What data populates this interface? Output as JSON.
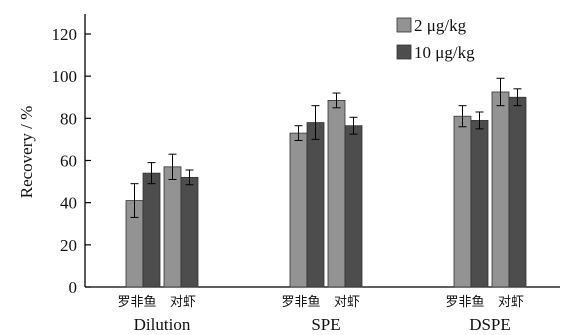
{
  "chart_data": {
    "type": "bar",
    "ylabel": "Recovery / %",
    "ylim": [
      0,
      120
    ],
    "yticks": [
      0,
      20,
      40,
      60,
      80,
      100,
      120
    ],
    "groups": [
      {
        "name": "Dilution",
        "subgroups": [
          {
            "label": "罗非鱼",
            "values": [
              41,
              54
            ],
            "errors": [
              8,
              5
            ]
          },
          {
            "label": "对虾",
            "values": [
              57,
              52
            ],
            "errors": [
              6,
              3.5
            ]
          }
        ]
      },
      {
        "name": "SPE",
        "subgroups": [
          {
            "label": "罗非鱼",
            "values": [
              73,
              78
            ],
            "errors": [
              3.5,
              8
            ]
          },
          {
            "label": "对虾",
            "values": [
              88.5,
              76.5
            ],
            "errors": [
              3.5,
              4
            ]
          }
        ]
      },
      {
        "name": "DSPE",
        "subgroups": [
          {
            "label": "罗非鱼",
            "values": [
              81,
              79
            ],
            "errors": [
              5,
              4
            ]
          },
          {
            "label": "对虾",
            "values": [
              92.5,
              90
            ],
            "errors": [
              6.5,
              4
            ]
          }
        ]
      }
    ],
    "series": [
      {
        "name": "2 μg/kg",
        "color": "#939393"
      },
      {
        "name": "10 μg/kg",
        "color": "#4d4d4d"
      }
    ],
    "legend_position": "top-right",
    "grid": false
  }
}
